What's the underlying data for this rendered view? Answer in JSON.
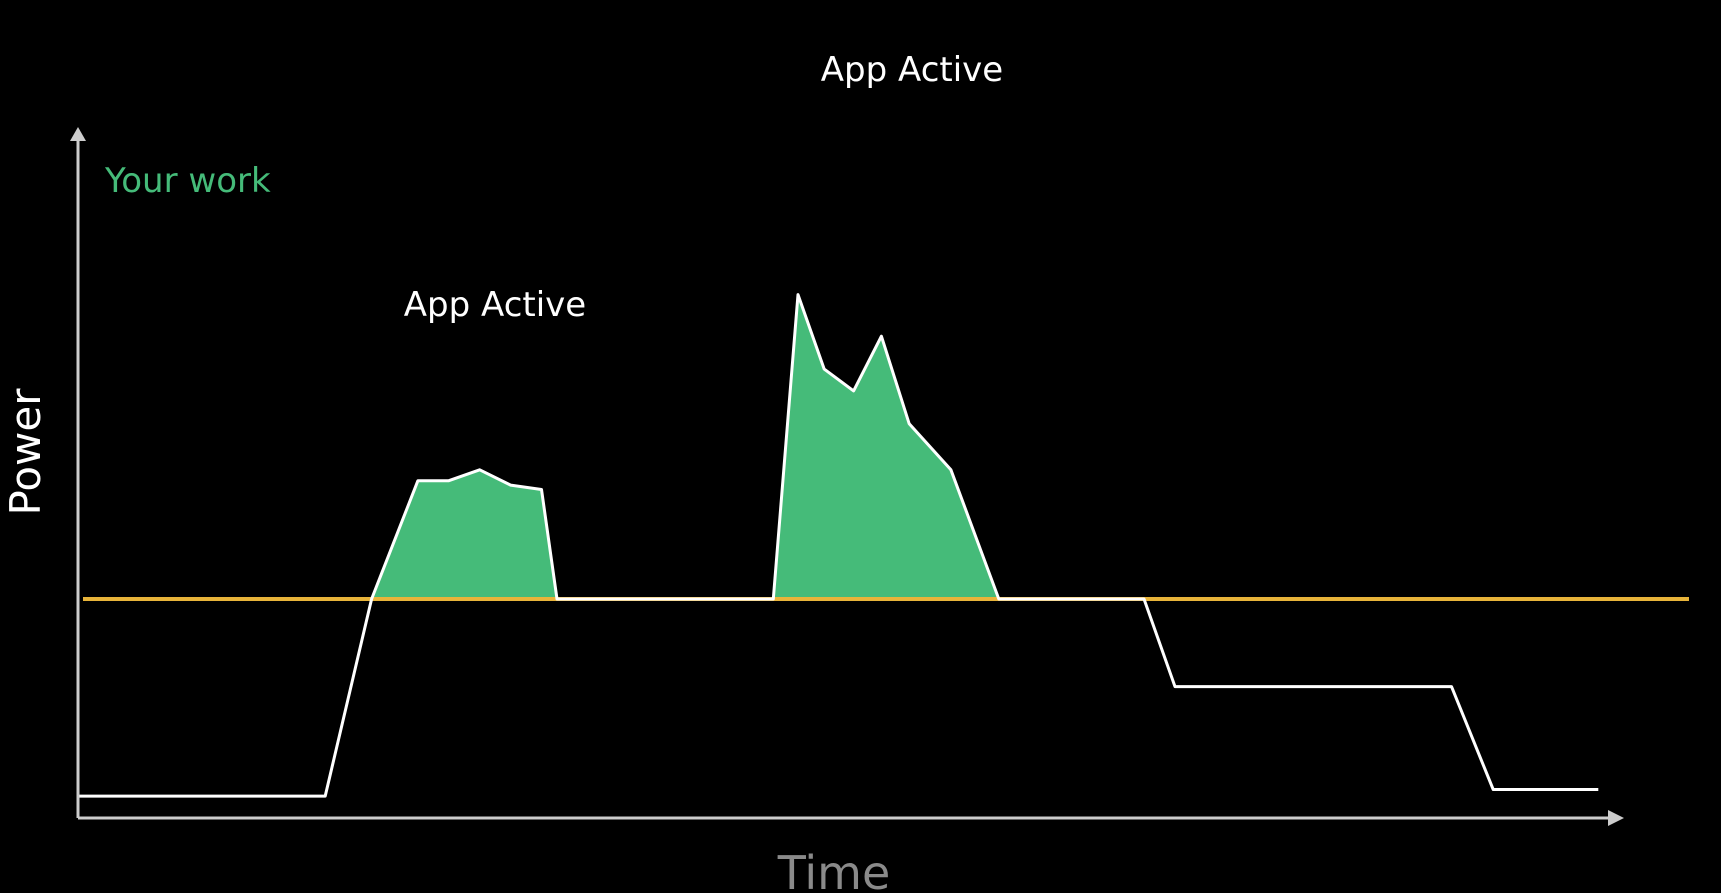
{
  "chart_data": {
    "type": "area",
    "title": "",
    "xlabel": "Time",
    "ylabel": "Power",
    "legend": [
      "Your work"
    ],
    "grid": false,
    "baseline": 1.0,
    "annotations": [
      "App Active",
      "App Active"
    ],
    "series": [
      {
        "name": "Your work",
        "x": [
          0,
          0.16,
          0.19,
          0.22,
          0.24,
          0.26,
          0.28,
          0.3,
          0.31,
          0.35,
          0.45,
          0.466,
          0.483,
          0.502,
          0.52,
          0.538,
          0.565,
          0.596,
          0.625,
          0.69,
          0.71,
          0.789,
          0.889,
          0.916,
          0.984
        ],
        "values": [
          0.1,
          0.1,
          1.0,
          1.54,
          1.54,
          1.59,
          1.52,
          1.5,
          1.0,
          1.0,
          1.0,
          2.39,
          2.05,
          1.95,
          2.2,
          1.8,
          1.59,
          1.0,
          1.0,
          1.0,
          0.6,
          0.6,
          0.6,
          0.13,
          0.13
        ]
      }
    ],
    "colors": {
      "fill": "#45BB79",
      "line": "#FFFFFF",
      "baseline": "#E8B43A",
      "axis": "#CCCCCC",
      "legend_text": "#45BB79",
      "axis_label": "#8A8A8A"
    }
  }
}
